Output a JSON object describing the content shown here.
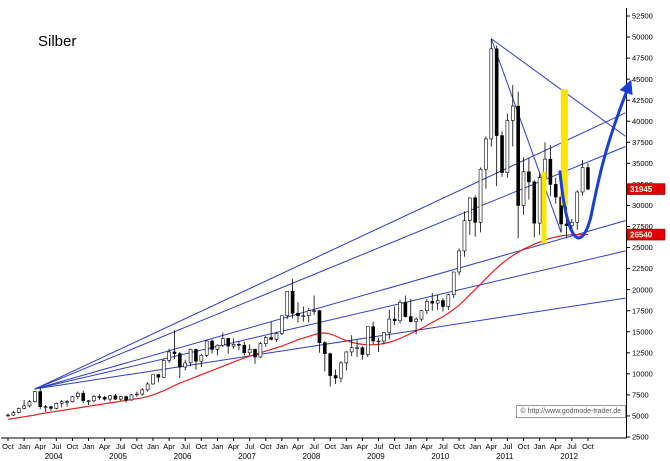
{
  "title": "Silber",
  "watermark": "© http://www.godmode-trader.de",
  "colors": {
    "trendline": "#2b3fbf",
    "ma": "#e02020",
    "highlight": "#ffe600",
    "arrow": "#1a3fd4",
    "tag_bg": "#e00000",
    "tag_text": "#ffffff",
    "candle": "#000000",
    "axis": "#000000"
  },
  "chart_data": {
    "type": "candlestick",
    "title": "Silber",
    "series_start": "Oct 2003",
    "series_end": "Oct 2012",
    "y_axis": {
      "min": 2500,
      "max": 52500,
      "step": 2500
    },
    "x_axis": {
      "months_total": 108,
      "quarter_labels_cycle": [
        "Oct",
        "Jan",
        "Apr",
        "Jul"
      ],
      "years": [
        "2004",
        "2005",
        "2006",
        "2007",
        "2008",
        "2009",
        "2010",
        "2011",
        "2012"
      ]
    },
    "candles_ohlc": [
      [
        5000,
        5300,
        4900,
        5100
      ],
      [
        5100,
        5600,
        5000,
        5400
      ],
      [
        5400,
        6000,
        5300,
        5900
      ],
      [
        5900,
        6900,
        5800,
        6200
      ],
      [
        6200,
        6900,
        6000,
        6700
      ],
      [
        6700,
        8000,
        6600,
        7900
      ],
      [
        7900,
        8300,
        5800,
        6100
      ],
      [
        6100,
        6300,
        5500,
        6100
      ],
      [
        6100,
        6200,
        5600,
        5900
      ],
      [
        5900,
        6600,
        5800,
        6500
      ],
      [
        6500,
        6900,
        6000,
        6700
      ],
      [
        6700,
        6900,
        6100,
        6700
      ],
      [
        6700,
        7400,
        6600,
        7300
      ],
      [
        7300,
        7900,
        7000,
        7700
      ],
      [
        7700,
        8000,
        6500,
        6800
      ],
      [
        6800,
        6900,
        6300,
        6800
      ],
      [
        6800,
        7500,
        6600,
        7300
      ],
      [
        7300,
        7600,
        6900,
        7200
      ],
      [
        7200,
        7400,
        6800,
        7000
      ],
      [
        7000,
        7500,
        6700,
        7400
      ],
      [
        7400,
        7600,
        6900,
        7000
      ],
      [
        7000,
        7400,
        6800,
        7300
      ],
      [
        7300,
        7400,
        6600,
        6900
      ],
      [
        6900,
        7600,
        6800,
        7500
      ],
      [
        7500,
        7900,
        7300,
        7600
      ],
      [
        7600,
        8300,
        7400,
        8100
      ],
      [
        8100,
        9000,
        7900,
        8800
      ],
      [
        8800,
        9900,
        8700,
        9900
      ],
      [
        9900,
        10000,
        9000,
        9600
      ],
      [
        9600,
        11700,
        9500,
        11600
      ],
      [
        11600,
        13000,
        11300,
        12600
      ],
      [
        12600,
        15200,
        11800,
        12400
      ],
      [
        12400,
        12600,
        9500,
        10800
      ],
      [
        10800,
        11700,
        10400,
        11300
      ],
      [
        11300,
        13000,
        10900,
        12900
      ],
      [
        12900,
        13000,
        10500,
        11500
      ],
      [
        11500,
        12400,
        10800,
        12200
      ],
      [
        12200,
        14000,
        12000,
        13900
      ],
      [
        13900,
        14100,
        12400,
        12900
      ],
      [
        12900,
        13500,
        12200,
        13400
      ],
      [
        13400,
        14900,
        13200,
        14200
      ],
      [
        14200,
        14300,
        12400,
        13300
      ],
      [
        13300,
        14200,
        13000,
        13500
      ],
      [
        13500,
        13900,
        12800,
        13400
      ],
      [
        13400,
        13800,
        12200,
        12500
      ],
      [
        12500,
        13500,
        12200,
        12900
      ],
      [
        12900,
        13000,
        11200,
        12000
      ],
      [
        12000,
        13800,
        11900,
        13600
      ],
      [
        13600,
        14500,
        13200,
        14300
      ],
      [
        14300,
        16200,
        14000,
        14100
      ],
      [
        14100,
        15000,
        13800,
        14800
      ],
      [
        14800,
        16900,
        14600,
        16900
      ],
      [
        16900,
        19800,
        16500,
        19800
      ],
      [
        19800,
        21300,
        16600,
        17200
      ],
      [
        17200,
        18500,
        16100,
        16900
      ],
      [
        16900,
        18000,
        16200,
        16900
      ],
      [
        16900,
        17800,
        16100,
        17500
      ],
      [
        17500,
        19300,
        17000,
        17500
      ],
      [
        17500,
        17600,
        12500,
        13700
      ],
      [
        13700,
        13900,
        10300,
        12400
      ],
      [
        12400,
        12500,
        8500,
        9800
      ],
      [
        9800,
        10500,
        8800,
        9500
      ],
      [
        9500,
        11500,
        9000,
        11300
      ],
      [
        11300,
        12700,
        10400,
        12600
      ],
      [
        12600,
        14600,
        12100,
        13100
      ],
      [
        13100,
        14000,
        12000,
        13100
      ],
      [
        13100,
        13300,
        11700,
        12300
      ],
      [
        12300,
        15600,
        12000,
        15600
      ],
      [
        15600,
        16200,
        13500,
        13900
      ],
      [
        13900,
        14300,
        12600,
        13900
      ],
      [
        13900,
        15000,
        13500,
        14900
      ],
      [
        14900,
        17600,
        14100,
        16500
      ],
      [
        16500,
        18000,
        15800,
        16300
      ],
      [
        16300,
        18800,
        16000,
        18500
      ],
      [
        18500,
        19300,
        16700,
        16800
      ],
      [
        16800,
        18900,
        16100,
        16200
      ],
      [
        16200,
        16700,
        14700,
        16500
      ],
      [
        16500,
        17600,
        16200,
        17500
      ],
      [
        17500,
        18900,
        17100,
        18600
      ],
      [
        18600,
        19600,
        17500,
        18400
      ],
      [
        18400,
        19400,
        17600,
        18700
      ],
      [
        18700,
        19000,
        17400,
        18000
      ],
      [
        18000,
        19500,
        17600,
        19400
      ],
      [
        19400,
        22100,
        19000,
        22100
      ],
      [
        22100,
        24900,
        21700,
        24600
      ],
      [
        24600,
        29300,
        23900,
        28200
      ],
      [
        28200,
        30900,
        26500,
        30900
      ],
      [
        30900,
        31200,
        26300,
        28000
      ],
      [
        28000,
        34500,
        26800,
        34300
      ],
      [
        34300,
        38200,
        32000,
        37900
      ],
      [
        37900,
        49800,
        37000,
        48600
      ],
      [
        48600,
        49000,
        32300,
        38300
      ],
      [
        38300,
        38800,
        33400,
        33900
      ],
      [
        33900,
        40900,
        33300,
        40100
      ],
      [
        40100,
        44300,
        37000,
        41800
      ],
      [
        41800,
        43500,
        26100,
        30000
      ],
      [
        30000,
        35700,
        28900,
        34000
      ],
      [
        34000,
        35600,
        30700,
        32800
      ],
      [
        32800,
        33000,
        26200,
        27900
      ],
      [
        27900,
        33800,
        26500,
        33300
      ],
      [
        33300,
        37500,
        33000,
        35500
      ],
      [
        35500,
        37200,
        31100,
        32500
      ],
      [
        32500,
        33300,
        30200,
        31000
      ],
      [
        31000,
        31400,
        26800,
        27800
      ],
      [
        27800,
        29900,
        26100,
        27600
      ],
      [
        27600,
        28400,
        26600,
        28000
      ],
      [
        28000,
        31800,
        27100,
        31600
      ],
      [
        31600,
        35400,
        31200,
        34500
      ],
      [
        34500,
        35000,
        31800,
        31945
      ]
    ],
    "moving_average": [
      4600,
      4700,
      4800,
      4900,
      5000,
      5100,
      5250,
      5350,
      5450,
      5550,
      5650,
      5750,
      5850,
      5950,
      6050,
      6150,
      6250,
      6350,
      6450,
      6550,
      6650,
      6750,
      6850,
      6950,
      7050,
      7150,
      7300,
      7500,
      7750,
      8000,
      8300,
      8600,
      8900,
      9150,
      9400,
      9650,
      9900,
      10150,
      10400,
      10650,
      10900,
      11150,
      11400,
      11650,
      11900,
      12100,
      12300,
      12500,
      12700,
      12900,
      13100,
      13300,
      13550,
      13800,
      14050,
      14250,
      14450,
      14650,
      14800,
      14850,
      14750,
      14500,
      14200,
      13950,
      13750,
      13600,
      13500,
      13450,
      13450,
      13500,
      13600,
      13750,
      13950,
      14200,
      14500,
      14800,
      15100,
      15400,
      15750,
      16100,
      16450,
      16800,
      17200,
      17650,
      18150,
      18750,
      19400,
      20000,
      20650,
      21300,
      21950,
      22550,
      23100,
      23600,
      24050,
      24450,
      24800,
      25100,
      25400,
      25650,
      25900,
      26100,
      26250,
      26380,
      26470,
      26520,
      26540,
      26540,
      26540
    ],
    "trendlines": [
      {
        "type": "fan-support",
        "m1": 5,
        "p1": 8200,
        "m2": 115,
        "p2": 41000
      },
      {
        "type": "fan-support",
        "m1": 5,
        "p1": 8200,
        "m2": 115,
        "p2": 37000
      },
      {
        "type": "fan-support",
        "m1": 5,
        "p1": 8200,
        "m2": 115,
        "p2": 28200
      },
      {
        "type": "fan-support",
        "m1": 5,
        "p1": 8200,
        "m2": 115,
        "p2": 24600
      },
      {
        "type": "fan-support",
        "m1": 5,
        "p1": 8200,
        "m2": 115,
        "p2": 19000
      },
      {
        "type": "downtrend",
        "m1": 90,
        "p1": 49800,
        "m2": 115,
        "p2": 38200
      },
      {
        "type": "downtrend",
        "m1": 90,
        "p1": 49800,
        "m2": 103,
        "p2": 26800
      }
    ],
    "highlight_bars": [
      {
        "month": 99.8,
        "price_top": 34000,
        "price_bottom": 25500,
        "width": 5
      },
      {
        "month": 103.6,
        "price_top": 43800,
        "price_bottom": 30000,
        "width": 7
      }
    ],
    "projection_arrow": {
      "start": [
        102.8,
        34000
      ],
      "c1": [
        104.0,
        26000
      ],
      "c2": [
        106.5,
        24000
      ],
      "mid": [
        108.5,
        28500
      ],
      "c3": [
        109.8,
        32500
      ],
      "c4": [
        110.8,
        36500
      ],
      "end": [
        115.8,
        44500
      ]
    },
    "price_tags": [
      {
        "label": "31945",
        "price": 31945
      },
      {
        "label": "26540",
        "price": 26540
      }
    ]
  }
}
